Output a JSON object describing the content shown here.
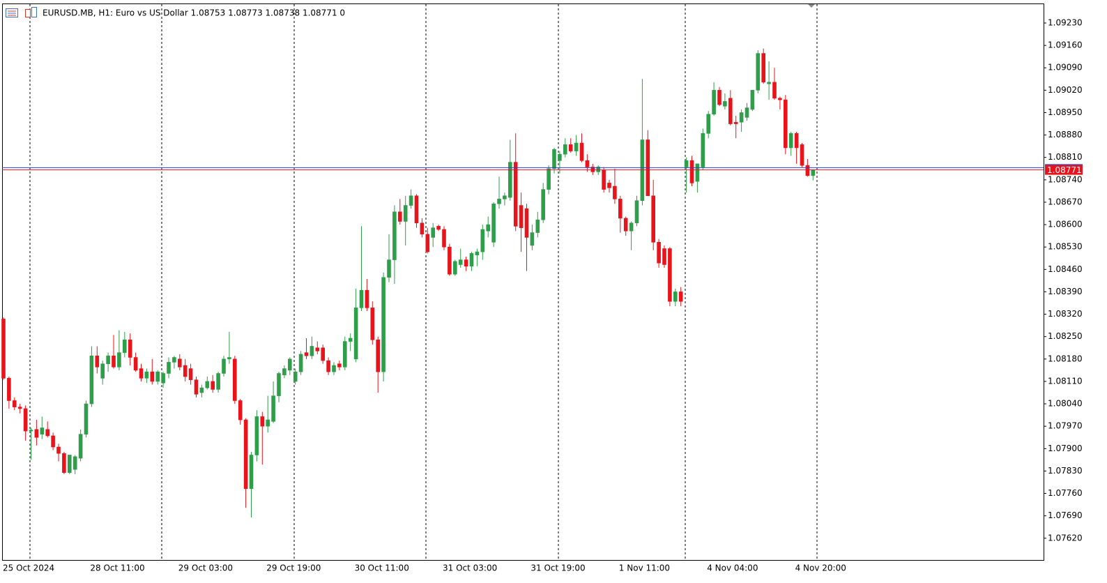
{
  "chart_data": {
    "type": "candlestick",
    "title": "EURUSD.MB, H1:  Euro vs US Dollar  1.08753 1.08773 1.08738 1.08771  0",
    "categories": [
      "25 Oct 2024",
      null,
      null,
      null,
      null,
      null,
      null,
      null,
      null,
      null,
      null,
      null,
      null,
      null,
      null,
      null,
      "28 Oct 11:00",
      null,
      null,
      null,
      null,
      null,
      null,
      null,
      null,
      null,
      null,
      null,
      null,
      null,
      null,
      null,
      "29 Oct 03:00",
      null,
      null,
      null,
      null,
      null,
      null,
      null,
      null,
      null,
      null,
      null,
      null,
      null,
      null,
      null,
      "29 Oct 19:00",
      null,
      null,
      null,
      null,
      null,
      null,
      null,
      null,
      null,
      null,
      null,
      null,
      null,
      null,
      null,
      "30 Oct 11:00",
      null,
      null,
      null,
      null,
      null,
      null,
      null,
      null,
      null,
      null,
      null,
      null,
      null,
      null,
      null,
      "31 Oct 03:00",
      null,
      null,
      null,
      null,
      null,
      null,
      null,
      null,
      null,
      null,
      null,
      null,
      null,
      null,
      null,
      "31 Oct 19:00",
      null,
      null,
      null,
      null,
      null,
      null,
      null,
      null,
      null,
      null,
      null,
      null,
      null,
      null,
      null,
      "1 Nov 11:00",
      null,
      null,
      null,
      null,
      null,
      null,
      null,
      null,
      null,
      null,
      null,
      null,
      null,
      null,
      null,
      "4 Nov 04:00",
      null,
      null,
      null,
      null,
      null,
      null,
      null,
      null,
      null,
      null,
      null,
      null,
      null,
      null,
      null,
      "4 Nov 20:00",
      null,
      null,
      null
    ],
    "open": [
      1.08305,
      1.0812,
      1.0805,
      1.0803,
      1.08025,
      1.07955,
      1.0796,
      1.07945,
      1.0796,
      1.0794,
      1.07905,
      1.07885,
      1.07825,
      1.07835,
      1.0787,
      1.07945,
      1.0804,
      1.0819,
      1.0812,
      1.08165,
      1.0819,
      1.08155,
      1.082,
      1.0824,
      1.08185,
      1.0815,
      1.0812,
      1.0814,
      1.0811,
      1.08105,
      1.08135,
      1.0817,
      1.0818,
      1.0816,
      1.0815,
      1.08115,
      1.08075,
      1.0809,
      1.0811,
      1.08085,
      1.08135,
      1.0818,
      1.0818,
      1.0805,
      1.0799,
      1.07775,
      1.0788,
      1.08,
      1.0797,
      1.07985,
      1.08065,
      1.0813,
      1.08145,
      1.0811,
      1.0814,
      1.082,
      1.0819,
      1.08215,
      1.08215,
      1.08175,
      1.0814,
      1.08165,
      1.08155,
      1.08235,
      1.0818,
      1.0834,
      1.08395,
      1.0834,
      1.0824,
      1.0814,
      1.08435,
      1.0849,
      1.0864,
      1.0861,
      1.0866,
      1.0869,
      1.08605,
      1.0857,
      1.0856,
      1.08595,
      1.08585,
      1.0853,
      1.08445,
      1.08475,
      1.0849,
      1.0847,
      1.08505,
      1.08515,
      1.0858,
      1.08545,
      1.08665,
      1.0868,
      1.08685,
      1.08795,
      1.0866,
      1.0865,
      1.08535,
      1.08575,
      1.08615,
      1.0871,
      1.08775,
      1.088,
      1.0882,
      1.0885,
      1.0883,
      1.08855,
      1.088,
      1.0878,
      1.08765,
      1.0877,
      1.0873,
      1.0872,
      1.0868,
      1.0862,
      1.0858,
      1.08605,
      1.08675,
      1.08865,
      1.0869,
      1.08545,
      1.08525,
      1.08525,
      1.0836,
      1.0839,
      1.0878,
      1.088,
      1.08735,
      1.0878,
      1.08885,
      1.08945,
      1.0902,
      1.0897,
      1.08995,
      1.0892,
      1.0892,
      1.08935,
      1.0896,
      1.0902,
      1.09135,
      1.0904,
      1.09045,
      1.08995,
      1.0899,
      1.0884,
      1.08885,
      1.0885,
      1.08785,
      1.08753
    ],
    "high": [
      1.0831,
      1.08125,
      1.0806,
      1.0804,
      1.08035,
      1.07965,
      1.0799,
      1.08,
      1.07985,
      1.0795,
      1.07915,
      1.0789,
      1.0788,
      1.0788,
      1.0796,
      1.0805,
      1.0822,
      1.0822,
      1.08175,
      1.082,
      1.08255,
      1.0827,
      1.08265,
      1.0826,
      1.082,
      1.08165,
      1.0815,
      1.0818,
      1.08145,
      1.0814,
      1.08185,
      1.0819,
      1.08195,
      1.0818,
      1.08165,
      1.08125,
      1.081,
      1.08125,
      1.0813,
      1.0814,
      1.0819,
      1.08265,
      1.0819,
      1.08055,
      1.07995,
      1.0789,
      1.0802,
      1.08015,
      1.08065,
      1.0811,
      1.0814,
      1.0816,
      1.08185,
      1.0815,
      1.08205,
      1.08245,
      1.0825,
      1.08235,
      1.08225,
      1.08185,
      1.0817,
      1.08175,
      1.0825,
      1.0826,
      1.084,
      1.08595,
      1.0843,
      1.0836,
      1.0825,
      1.0845,
      1.0857,
      1.0866,
      1.0868,
      1.0869,
      1.0871,
      1.08695,
      1.0862,
      1.0859,
      1.08605,
      1.086,
      1.08595,
      1.0854,
      1.0849,
      1.08525,
      1.085,
      1.08515,
      1.08525,
      1.086,
      1.08625,
      1.0867,
      1.0875,
      1.087,
      1.08865,
      1.08885,
      1.087,
      1.08665,
      1.086,
      1.0864,
      1.0873,
      1.08785,
      1.0884,
      1.0883,
      1.0887,
      1.0887,
      1.0888,
      1.08885,
      1.0882,
      1.0879,
      1.08785,
      1.0878,
      1.0874,
      1.08775,
      1.0869,
      1.08625,
      1.0861,
      1.0869,
      1.09055,
      1.08895,
      1.0874,
      1.08555,
      1.08535,
      1.0853,
      1.084,
      1.08405,
      1.0881,
      1.08815,
      1.0879,
      1.089,
      1.08955,
      1.09045,
      1.0903,
      1.0901,
      1.0902,
      1.0894,
      1.0896,
      1.0898,
      1.0902,
      1.09145,
      1.0915,
      1.0911,
      1.0909,
      1.09,
      1.09005,
      1.0889,
      1.0889,
      1.08855,
      1.08805,
      1.08773
    ],
    "low": [
      1.08115,
      1.08025,
      1.0802,
      1.0801,
      1.07925,
      1.07865,
      1.0791,
      1.0793,
      1.07935,
      1.07895,
      1.0786,
      1.0782,
      1.0782,
      1.0782,
      1.0786,
      1.07935,
      1.0803,
      1.08135,
      1.081,
      1.0814,
      1.0815,
      1.08145,
      1.08185,
      1.0816,
      1.0814,
      1.0811,
      1.08105,
      1.081,
      1.081,
      1.0809,
      1.0812,
      1.0815,
      1.08145,
      1.0811,
      1.081,
      1.0806,
      1.0806,
      1.08085,
      1.08075,
      1.08075,
      1.08125,
      1.08165,
      1.0804,
      1.07975,
      1.07715,
      1.07685,
      1.0786,
      1.0785,
      1.0795,
      1.0798,
      1.08045,
      1.0812,
      1.0813,
      1.081,
      1.0813,
      1.0818,
      1.0818,
      1.08195,
      1.08165,
      1.0813,
      1.0813,
      1.08145,
      1.08145,
      1.08205,
      1.0817,
      1.0833,
      1.0833,
      1.08225,
      1.08075,
      1.0811,
      1.0842,
      1.08415,
      1.086,
      1.08535,
      1.0865,
      1.0859,
      1.0856,
      1.0851,
      1.0853,
      1.0858,
      1.0852,
      1.0844,
      1.0844,
      1.08465,
      1.08455,
      1.08455,
      1.0847,
      1.0849,
      1.0856,
      1.0853,
      1.0865,
      1.0866,
      1.08675,
      1.0858,
      1.08515,
      1.08455,
      1.0852,
      1.0856,
      1.08605,
      1.08695,
      1.0876,
      1.0876,
      1.0881,
      1.08825,
      1.08815,
      1.08795,
      1.08765,
      1.08755,
      1.08755,
      1.087,
      1.087,
      1.08665,
      1.08575,
      1.08565,
      1.0852,
      1.08595,
      1.0866,
      1.0869,
      1.0852,
      1.08465,
      1.08465,
      1.08345,
      1.08345,
      1.08345,
      1.087,
      1.0872,
      1.087,
      1.0877,
      1.0887,
      1.0894,
      1.0897,
      1.0896,
      1.0891,
      1.0887,
      1.0889,
      1.08925,
      1.08955,
      1.0901,
      1.0904,
      1.0899,
      1.0899,
      1.0896,
      1.0882,
      1.08815,
      1.0879,
      1.0878,
      1.0875,
      1.08738
    ],
    "close": [
      1.0812,
      1.0805,
      1.0803,
      1.08025,
      1.07955,
      1.07958,
      1.07935,
      1.07965,
      1.0794,
      1.07905,
      1.07885,
      1.07825,
      1.0788,
      1.07875,
      1.07945,
      1.0804,
      1.0819,
      1.08155,
      1.08165,
      1.0819,
      1.08155,
      1.082,
      1.0824,
      1.08185,
      1.08145,
      1.0812,
      1.0814,
      1.0811,
      1.0814,
      1.08135,
      1.0817,
      1.08185,
      1.08155,
      1.08125,
      1.08115,
      1.0807,
      1.0809,
      1.0811,
      1.08085,
      1.08135,
      1.0818,
      1.08185,
      1.0805,
      1.0799,
      1.07775,
      1.0788,
      1.08,
      1.0797,
      1.0799,
      1.08065,
      1.08135,
      1.0815,
      1.0818,
      1.0814,
      1.08195,
      1.0819,
      1.0822,
      1.08205,
      1.08175,
      1.0814,
      1.0816,
      1.08155,
      1.08235,
      1.08245,
      1.0834,
      1.08395,
      1.0834,
      1.0824,
      1.0814,
      1.08435,
      1.0849,
      1.0864,
      1.0861,
      1.0866,
      1.0869,
      1.08605,
      1.0857,
      1.08515,
      1.0859,
      1.08585,
      1.0853,
      1.08445,
      1.08485,
      1.0849,
      1.0847,
      1.0851,
      1.08515,
      1.08585,
      1.086,
      1.08665,
      1.0868,
      1.0869,
      1.08795,
      1.08595,
      1.0859,
      1.0856,
      1.08575,
      1.08615,
      1.0871,
      1.08775,
      1.08835,
      1.0882,
      1.0885,
      1.0883,
      1.08855,
      1.088,
      1.0878,
      1.08765,
      1.0878,
      1.0871,
      1.08715,
      1.0868,
      1.0862,
      1.0858,
      1.08605,
      1.08675,
      1.08865,
      1.0869,
      1.08545,
      1.0848,
      1.08475,
      1.0836,
      1.0839,
      1.0836,
      1.088,
      1.0873,
      1.0879,
      1.08885,
      1.08945,
      1.0902,
      1.08975,
      1.08985,
      1.08915,
      1.08915,
      1.0895,
      1.08965,
      1.0902,
      1.09135,
      1.09045,
      1.09045,
      1.08995,
      1.0899,
      1.0884,
      1.08885,
      1.0884,
      1.08785,
      1.08753,
      1.08771
    ],
    "up_color": "#2f9e4a",
    "down_color": "#e8141c",
    "ylim": [
      1.07552,
      1.09291
    ],
    "yticks": [
      {
        "value": 1.0923,
        "label": "1.09230"
      },
      {
        "value": 1.0916,
        "label": "1.09160"
      },
      {
        "value": 1.0909,
        "label": "1.09090"
      },
      {
        "value": 1.0902,
        "label": "1.09020"
      },
      {
        "value": 1.0895,
        "label": "1.08950"
      },
      {
        "value": 1.0888,
        "label": "1.08880"
      },
      {
        "value": 1.0881,
        "label": "1.08810"
      },
      {
        "value": 1.0874,
        "label": "1.08740"
      },
      {
        "value": 1.0867,
        "label": "1.08670"
      },
      {
        "value": 1.086,
        "label": "1.08600"
      },
      {
        "value": 1.0853,
        "label": "1.08530"
      },
      {
        "value": 1.0846,
        "label": "1.08460"
      },
      {
        "value": 1.0839,
        "label": "1.08390"
      },
      {
        "value": 1.0832,
        "label": "1.08320"
      },
      {
        "value": 1.0825,
        "label": "1.08250"
      },
      {
        "value": 1.0818,
        "label": "1.08180"
      },
      {
        "value": 1.0811,
        "label": "1.08110"
      },
      {
        "value": 1.0804,
        "label": "1.08040"
      },
      {
        "value": 1.0797,
        "label": "1.07970"
      },
      {
        "value": 1.079,
        "label": "1.07900"
      },
      {
        "value": 1.0783,
        "label": "1.07830"
      },
      {
        "value": 1.0776,
        "label": "1.07760"
      },
      {
        "value": 1.0769,
        "label": "1.07690"
      },
      {
        "value": 1.0762,
        "label": "1.07620"
      }
    ],
    "bid_line": {
      "value": 1.08771,
      "label": "1.08771"
    },
    "ask_line": 1.08778
  }
}
